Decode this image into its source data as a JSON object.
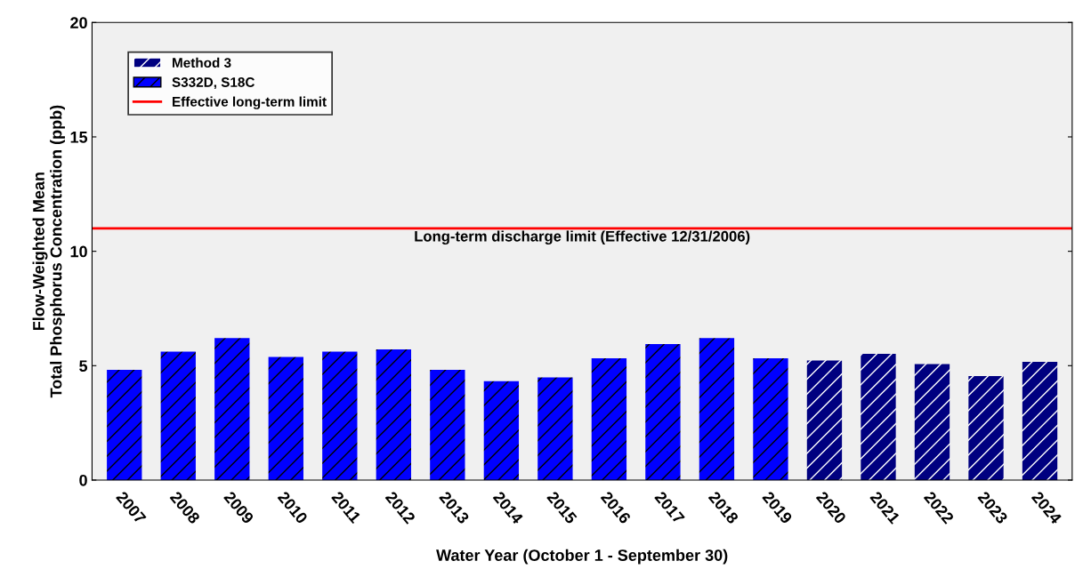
{
  "chart_data": {
    "type": "bar",
    "xlabel": "Water Year (October 1 - September 30)",
    "ylabel": "Flow-Weighted Mean\nTotal Phosphorus Concentration (ppb)",
    "categories": [
      "2007",
      "2008",
      "2009",
      "2010",
      "2011",
      "2012",
      "2013",
      "2014",
      "2015",
      "2016",
      "2017",
      "2018",
      "2019",
      "2020",
      "2021",
      "2022",
      "2023",
      "2024"
    ],
    "series": [
      {
        "name": "Method 3",
        "color": "#000080",
        "values": [
          null,
          null,
          null,
          null,
          null,
          null,
          null,
          null,
          null,
          null,
          null,
          null,
          null,
          5.23,
          5.52,
          5.07,
          4.55,
          5.17
        ]
      },
      {
        "name": "S332D, S18C",
        "color": "#0000ff",
        "values": [
          4.82,
          5.61,
          6.21,
          5.38,
          5.61,
          5.71,
          4.82,
          4.32,
          4.49,
          5.32,
          5.94,
          6.21,
          5.32,
          null,
          null,
          null,
          null,
          null
        ]
      }
    ],
    "ref_lines": [
      {
        "axis": "y",
        "value": 11.0,
        "label": "Effective long-term limit",
        "color": "#ff0000"
      }
    ],
    "annotations": [
      "Long-term discharge limit (Effective 12/31/2006)"
    ],
    "ylim": [
      0,
      20
    ],
    "yticks": [
      0,
      5,
      10,
      15,
      20
    ],
    "grid": false,
    "legend": "top left"
  }
}
